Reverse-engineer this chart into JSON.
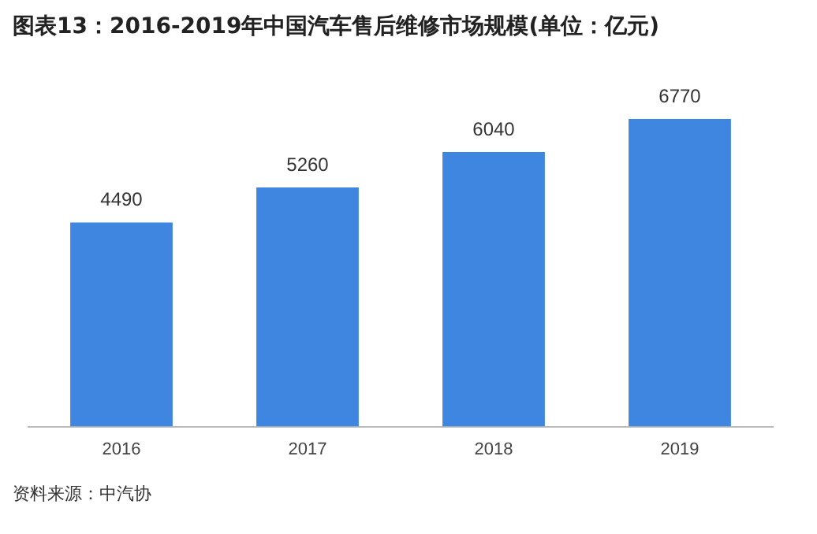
{
  "chart_data": {
    "type": "bar",
    "title": "图表13：2016-2019年中国汽车售后维修市场规模(单位：亿元)",
    "categories": [
      "2016",
      "2017",
      "2018",
      "2019"
    ],
    "values": [
      4490,
      5260,
      6040,
      6770
    ],
    "color": "#3f86e0",
    "data_labels": true,
    "grid": false,
    "legend": false,
    "annotations": [
      "资料来源：中汽协"
    ]
  }
}
